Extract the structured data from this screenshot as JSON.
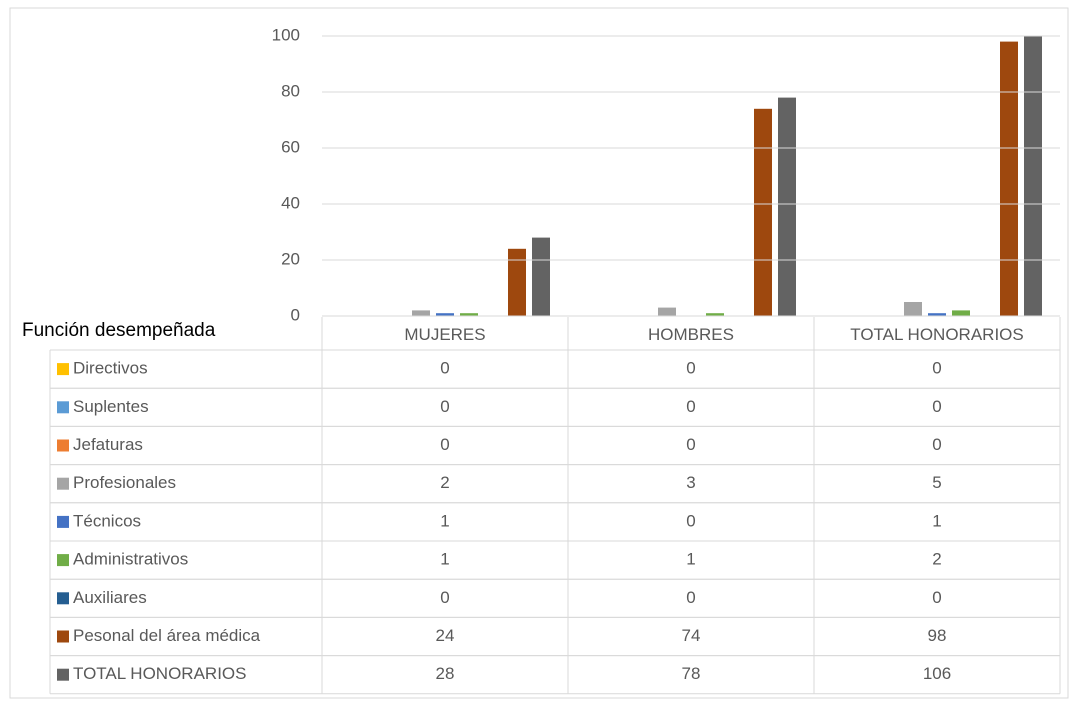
{
  "chart_data": {
    "type": "bar",
    "table_header": "Función desempeñada",
    "categories": [
      "MUJERES",
      "HOMBRES",
      "TOTAL HONORARIOS"
    ],
    "series": [
      {
        "name": "Directivos",
        "color": "#ffc000",
        "values": [
          0,
          0,
          0
        ]
      },
      {
        "name": "Suplentes",
        "color": "#5b9bd5",
        "values": [
          0,
          0,
          0
        ]
      },
      {
        "name": "Jefaturas",
        "color": "#ed7d31",
        "values": [
          0,
          0,
          0
        ]
      },
      {
        "name": "Profesionales",
        "color": "#a5a5a5",
        "values": [
          2,
          3,
          5
        ]
      },
      {
        "name": "Técnicos",
        "color": "#4472c4",
        "values": [
          1,
          0,
          1
        ]
      },
      {
        "name": "Administrativos",
        "color": "#70ad47",
        "values": [
          1,
          1,
          2
        ]
      },
      {
        "name": "Auxiliares",
        "color": "#255e91",
        "values": [
          0,
          0,
          0
        ]
      },
      {
        "name": "Pesonal del área médica",
        "color": "#9e480e",
        "values": [
          24,
          74,
          98
        ]
      },
      {
        "name": "TOTAL HONORARIOS",
        "color": "#636363",
        "values": [
          28,
          78,
          106
        ]
      }
    ],
    "ylim": [
      0,
      100
    ],
    "yticks": [
      0,
      20,
      40,
      60,
      80,
      100
    ],
    "grid": true
  }
}
